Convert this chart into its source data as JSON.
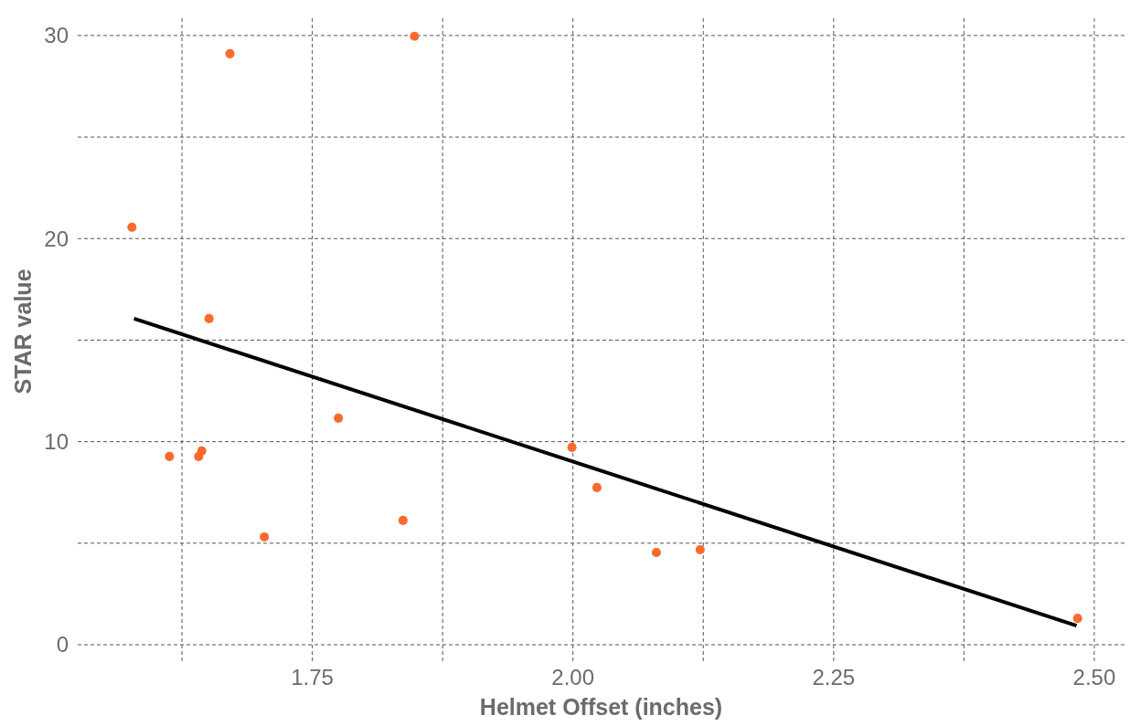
{
  "chart_data": {
    "type": "scatter",
    "xlabel": "Helmet Offset (inches)",
    "ylabel": "STAR value",
    "xlim": [
      1.525,
      2.529
    ],
    "ylim": [
      0,
      30.85
    ],
    "xticks": [
      {
        "value": 1.625,
        "label": null
      },
      1.75,
      {
        "value": 1.875,
        "label": null
      },
      {
        "value": 2,
        "label": "2.00"
      },
      {
        "value": 2.125,
        "label": null
      },
      2.25,
      {
        "value": 2.375,
        "label": null
      },
      {
        "value": 2.5,
        "label": "2.50"
      }
    ],
    "yticks": [
      0,
      {
        "value": 5,
        "label": null
      },
      10,
      {
        "value": 15,
        "label": null
      },
      20,
      {
        "value": 25,
        "label": null
      },
      30
    ],
    "grid": true,
    "series": [
      {
        "marker": "circle",
        "color": "#fb6a2c",
        "x": [
          1.577,
          1.613,
          1.641,
          1.644,
          1.651,
          1.671,
          1.704,
          1.775,
          1.837,
          1.848,
          1.999,
          2.023,
          2.08,
          2.122,
          2.484
        ],
        "values": [
          20.56,
          9.27,
          9.27,
          9.54,
          16.06,
          29.1,
          5.31,
          11.16,
          6.12,
          29.96,
          9.72,
          7.74,
          4.54,
          4.68,
          1.3
        ]
      },
      {
        "type": "line",
        "color": "#000000",
        "x": [
          1.579,
          2.483
        ],
        "values": [
          16.06,
          0.94
        ]
      }
    ]
  }
}
